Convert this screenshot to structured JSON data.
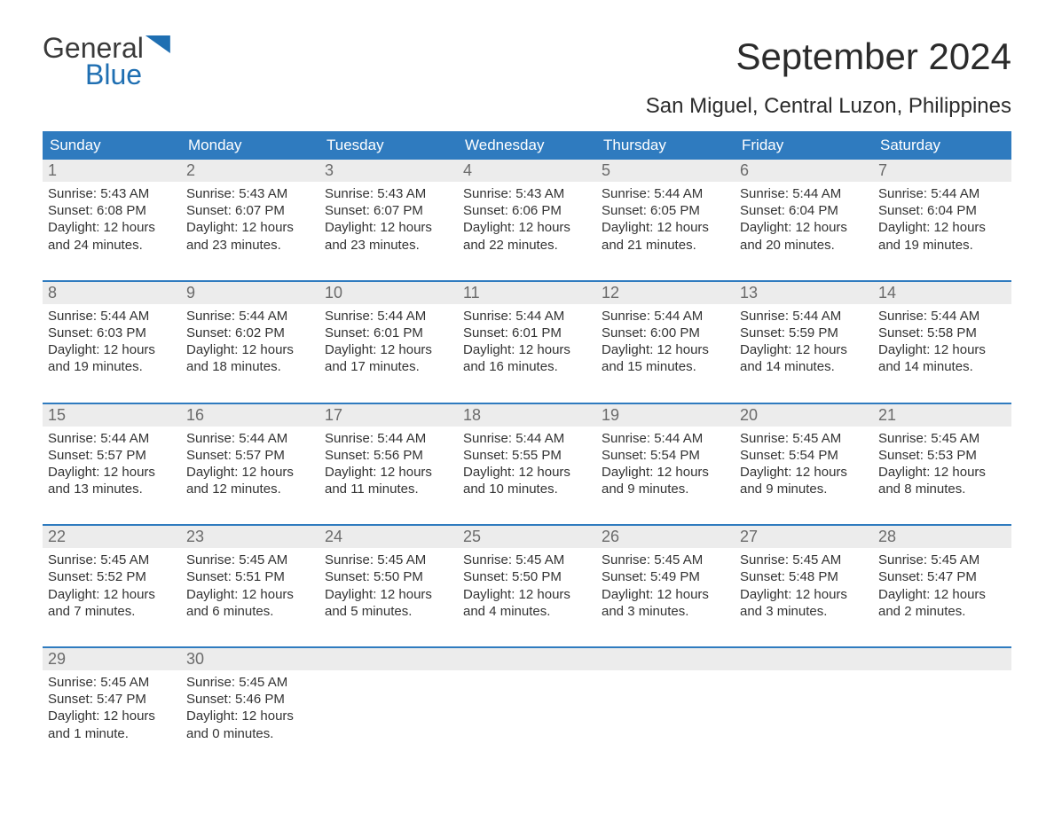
{
  "logo": {
    "line1": "General",
    "line2": "Blue"
  },
  "title": "September 2024",
  "subtitle": "San Miguel, Central Luzon, Philippines",
  "colors": {
    "header_bg": "#2f7bbf",
    "header_text": "#ffffff",
    "daynum_bg": "#ececec",
    "daynum_text": "#6b6b6b",
    "body_text": "#333333",
    "week_border": "#2f7bbf",
    "logo_blue": "#1f6fb2",
    "background": "#ffffff"
  },
  "typography": {
    "title_fontsize": 42,
    "subtitle_fontsize": 24,
    "dow_fontsize": 17,
    "daynum_fontsize": 18,
    "cell_fontsize": 15
  },
  "dow": [
    "Sunday",
    "Monday",
    "Tuesday",
    "Wednesday",
    "Thursday",
    "Friday",
    "Saturday"
  ],
  "weeks": [
    [
      {
        "n": "1",
        "sunrise": "Sunrise: 5:43 AM",
        "sunset": "Sunset: 6:08 PM",
        "d1": "Daylight: 12 hours",
        "d2": "and 24 minutes."
      },
      {
        "n": "2",
        "sunrise": "Sunrise: 5:43 AM",
        "sunset": "Sunset: 6:07 PM",
        "d1": "Daylight: 12 hours",
        "d2": "and 23 minutes."
      },
      {
        "n": "3",
        "sunrise": "Sunrise: 5:43 AM",
        "sunset": "Sunset: 6:07 PM",
        "d1": "Daylight: 12 hours",
        "d2": "and 23 minutes."
      },
      {
        "n": "4",
        "sunrise": "Sunrise: 5:43 AM",
        "sunset": "Sunset: 6:06 PM",
        "d1": "Daylight: 12 hours",
        "d2": "and 22 minutes."
      },
      {
        "n": "5",
        "sunrise": "Sunrise: 5:44 AM",
        "sunset": "Sunset: 6:05 PM",
        "d1": "Daylight: 12 hours",
        "d2": "and 21 minutes."
      },
      {
        "n": "6",
        "sunrise": "Sunrise: 5:44 AM",
        "sunset": "Sunset: 6:04 PM",
        "d1": "Daylight: 12 hours",
        "d2": "and 20 minutes."
      },
      {
        "n": "7",
        "sunrise": "Sunrise: 5:44 AM",
        "sunset": "Sunset: 6:04 PM",
        "d1": "Daylight: 12 hours",
        "d2": "and 19 minutes."
      }
    ],
    [
      {
        "n": "8",
        "sunrise": "Sunrise: 5:44 AM",
        "sunset": "Sunset: 6:03 PM",
        "d1": "Daylight: 12 hours",
        "d2": "and 19 minutes."
      },
      {
        "n": "9",
        "sunrise": "Sunrise: 5:44 AM",
        "sunset": "Sunset: 6:02 PM",
        "d1": "Daylight: 12 hours",
        "d2": "and 18 minutes."
      },
      {
        "n": "10",
        "sunrise": "Sunrise: 5:44 AM",
        "sunset": "Sunset: 6:01 PM",
        "d1": "Daylight: 12 hours",
        "d2": "and 17 minutes."
      },
      {
        "n": "11",
        "sunrise": "Sunrise: 5:44 AM",
        "sunset": "Sunset: 6:01 PM",
        "d1": "Daylight: 12 hours",
        "d2": "and 16 minutes."
      },
      {
        "n": "12",
        "sunrise": "Sunrise: 5:44 AM",
        "sunset": "Sunset: 6:00 PM",
        "d1": "Daylight: 12 hours",
        "d2": "and 15 minutes."
      },
      {
        "n": "13",
        "sunrise": "Sunrise: 5:44 AM",
        "sunset": "Sunset: 5:59 PM",
        "d1": "Daylight: 12 hours",
        "d2": "and 14 minutes."
      },
      {
        "n": "14",
        "sunrise": "Sunrise: 5:44 AM",
        "sunset": "Sunset: 5:58 PM",
        "d1": "Daylight: 12 hours",
        "d2": "and 14 minutes."
      }
    ],
    [
      {
        "n": "15",
        "sunrise": "Sunrise: 5:44 AM",
        "sunset": "Sunset: 5:57 PM",
        "d1": "Daylight: 12 hours",
        "d2": "and 13 minutes."
      },
      {
        "n": "16",
        "sunrise": "Sunrise: 5:44 AM",
        "sunset": "Sunset: 5:57 PM",
        "d1": "Daylight: 12 hours",
        "d2": "and 12 minutes."
      },
      {
        "n": "17",
        "sunrise": "Sunrise: 5:44 AM",
        "sunset": "Sunset: 5:56 PM",
        "d1": "Daylight: 12 hours",
        "d2": "and 11 minutes."
      },
      {
        "n": "18",
        "sunrise": "Sunrise: 5:44 AM",
        "sunset": "Sunset: 5:55 PM",
        "d1": "Daylight: 12 hours",
        "d2": "and 10 minutes."
      },
      {
        "n": "19",
        "sunrise": "Sunrise: 5:44 AM",
        "sunset": "Sunset: 5:54 PM",
        "d1": "Daylight: 12 hours",
        "d2": "and 9 minutes."
      },
      {
        "n": "20",
        "sunrise": "Sunrise: 5:45 AM",
        "sunset": "Sunset: 5:54 PM",
        "d1": "Daylight: 12 hours",
        "d2": "and 9 minutes."
      },
      {
        "n": "21",
        "sunrise": "Sunrise: 5:45 AM",
        "sunset": "Sunset: 5:53 PM",
        "d1": "Daylight: 12 hours",
        "d2": "and 8 minutes."
      }
    ],
    [
      {
        "n": "22",
        "sunrise": "Sunrise: 5:45 AM",
        "sunset": "Sunset: 5:52 PM",
        "d1": "Daylight: 12 hours",
        "d2": "and 7 minutes."
      },
      {
        "n": "23",
        "sunrise": "Sunrise: 5:45 AM",
        "sunset": "Sunset: 5:51 PM",
        "d1": "Daylight: 12 hours",
        "d2": "and 6 minutes."
      },
      {
        "n": "24",
        "sunrise": "Sunrise: 5:45 AM",
        "sunset": "Sunset: 5:50 PM",
        "d1": "Daylight: 12 hours",
        "d2": "and 5 minutes."
      },
      {
        "n": "25",
        "sunrise": "Sunrise: 5:45 AM",
        "sunset": "Sunset: 5:50 PM",
        "d1": "Daylight: 12 hours",
        "d2": "and 4 minutes."
      },
      {
        "n": "26",
        "sunrise": "Sunrise: 5:45 AM",
        "sunset": "Sunset: 5:49 PM",
        "d1": "Daylight: 12 hours",
        "d2": "and 3 minutes."
      },
      {
        "n": "27",
        "sunrise": "Sunrise: 5:45 AM",
        "sunset": "Sunset: 5:48 PM",
        "d1": "Daylight: 12 hours",
        "d2": "and 3 minutes."
      },
      {
        "n": "28",
        "sunrise": "Sunrise: 5:45 AM",
        "sunset": "Sunset: 5:47 PM",
        "d1": "Daylight: 12 hours",
        "d2": "and 2 minutes."
      }
    ],
    [
      {
        "n": "29",
        "sunrise": "Sunrise: 5:45 AM",
        "sunset": "Sunset: 5:47 PM",
        "d1": "Daylight: 12 hours",
        "d2": "and 1 minute."
      },
      {
        "n": "30",
        "sunrise": "Sunrise: 5:45 AM",
        "sunset": "Sunset: 5:46 PM",
        "d1": "Daylight: 12 hours",
        "d2": "and 0 minutes."
      },
      {
        "n": "",
        "sunrise": "",
        "sunset": "",
        "d1": "",
        "d2": ""
      },
      {
        "n": "",
        "sunrise": "",
        "sunset": "",
        "d1": "",
        "d2": ""
      },
      {
        "n": "",
        "sunrise": "",
        "sunset": "",
        "d1": "",
        "d2": ""
      },
      {
        "n": "",
        "sunrise": "",
        "sunset": "",
        "d1": "",
        "d2": ""
      },
      {
        "n": "",
        "sunrise": "",
        "sunset": "",
        "d1": "",
        "d2": ""
      }
    ]
  ]
}
